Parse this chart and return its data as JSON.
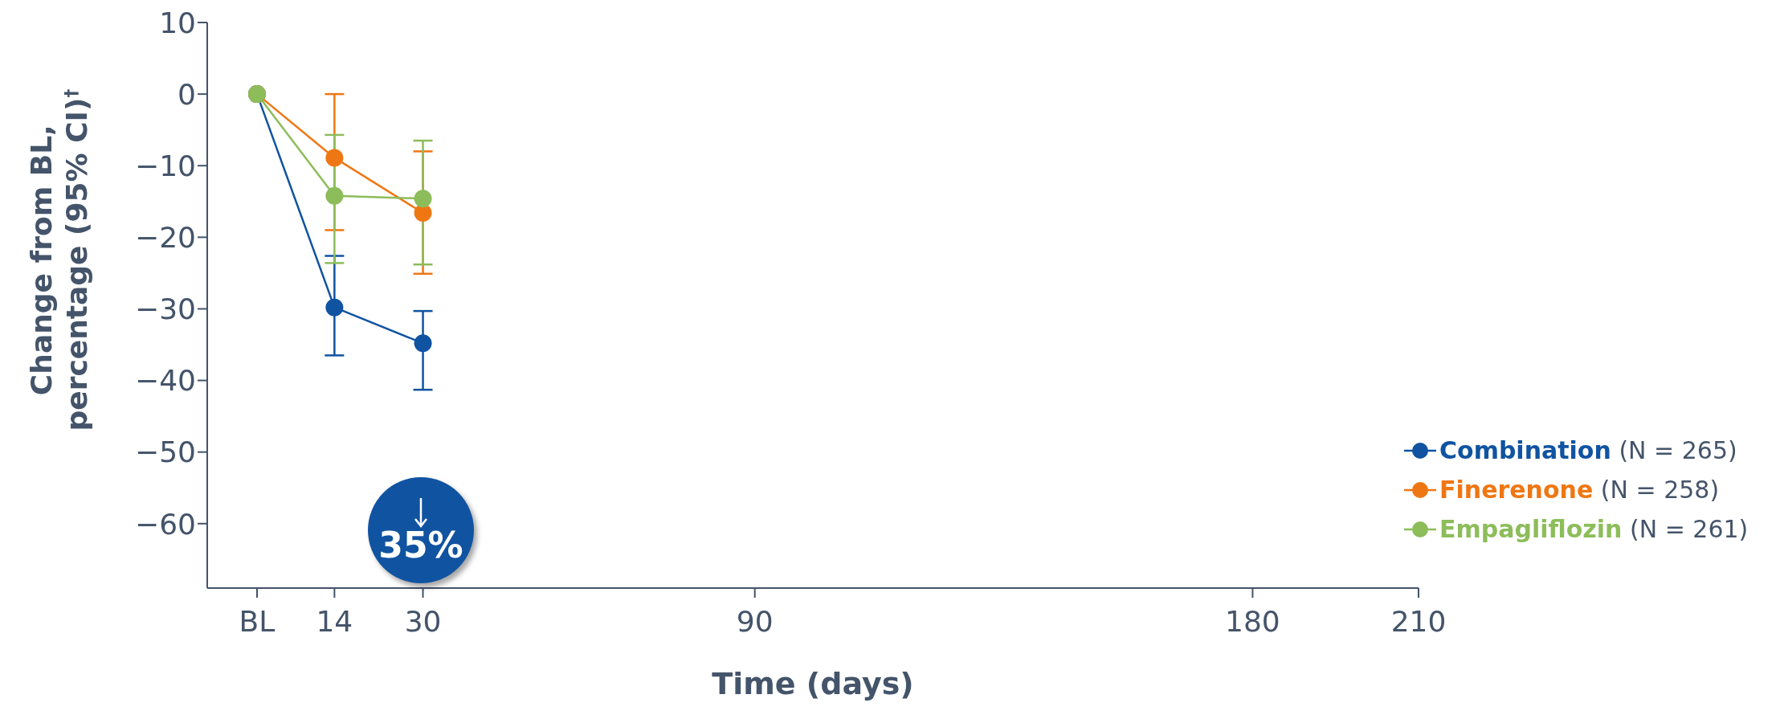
{
  "chart_data": {
    "type": "line",
    "xlabel": "Time (days)",
    "ylabel": "Change from BL, percentage (95% CI)$^{†}$",
    "x": [
      0,
      14,
      30
    ],
    "series": [
      {
        "name": "Combination (N = 265)",
        "color": "#1053a1",
        "values": [
          0,
          -29.8,
          -34.8
        ],
        "errors": [
          null,
          [
            -36.5,
            -22.6
          ],
          [
            -41.3,
            -30.3
          ]
        ]
      },
      {
        "name": "Finerenone (N = 258)",
        "color": "#ef7713",
        "values": [
          0,
          -8.9,
          -16.6
        ],
        "errors": [
          null,
          [
            -19.0,
            0
          ],
          [
            -25.1,
            -8.0
          ]
        ]
      },
      {
        "name": "Empagliflozin (N = 261)",
        "color": "#8cbd5a",
        "values": [
          0,
          -14.2,
          -14.6
        ],
        "errors": [
          null,
          [
            -23.6,
            -5.7
          ],
          [
            -23.8,
            -6.5
          ]
        ]
      }
    ],
    "xlim": [
      -9,
      210
    ],
    "xticks": [
      {
        "value": 0,
        "label": "BL"
      },
      14,
      30,
      90,
      180,
      210
    ],
    "ylim": [
      -69,
      10
    ],
    "yticks": [
      10,
      0,
      {
        "value": -10,
        "label": "−10"
      },
      {
        "value": -20,
        "label": "−20"
      },
      {
        "value": -30,
        "label": "−30"
      },
      {
        "value": -40,
        "label": "−40"
      },
      {
        "value": -50,
        "label": "−50"
      },
      {
        "value": -60,
        "label": "−60"
      }
    ],
    "annotations": [
      "35%"
    ],
    "grid": false,
    "legend": "bottom right",
    "marker": "circle",
    "line_style": "solid"
  }
}
